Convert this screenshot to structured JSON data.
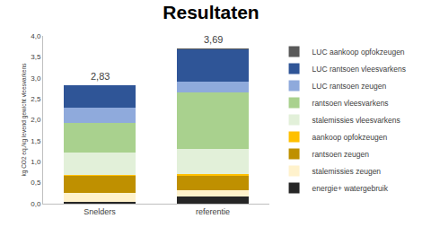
{
  "chart_data": {
    "type": "bar",
    "stacked": true,
    "title": "Resultaten",
    "y_label": "kg CO2 eq./kg levend gewicht vleesvarkens",
    "categories": [
      "Snelders",
      "referentie"
    ],
    "series": [
      {
        "name": "energie+ watergebruik",
        "color": "#262626",
        "values": [
          0.05,
          0.18
        ]
      },
      {
        "name": "stalemissies zeugen",
        "color": "#fff2cc",
        "values": [
          0.2,
          0.15
        ]
      },
      {
        "name": "rantsoen zeugen",
        "color": "#bf9000",
        "values": [
          0.42,
          0.34
        ]
      },
      {
        "name": "aankoop opfokzeugen",
        "color": "#ffc000",
        "values": [
          0.02,
          0.03
        ]
      },
      {
        "name": "stalemissies vleesvarkens",
        "color": "#e2f0d9",
        "values": [
          0.53,
          0.6
        ]
      },
      {
        "name": "rantsoen vleesvarkens",
        "color": "#a9d18e",
        "values": [
          0.7,
          1.35
        ]
      },
      {
        "name": "LUC rantsoen zeugen",
        "color": "#8faadc",
        "values": [
          0.36,
          0.25
        ]
      },
      {
        "name": "LUC rantsoen vleesvarkens",
        "color": "#2f5597",
        "values": [
          0.55,
          0.77
        ]
      },
      {
        "name": "LUC aankoop opfokzeugen",
        "color": "#595959",
        "values": [
          0,
          0.02
        ]
      }
    ],
    "totals": [
      2.83,
      3.69
    ],
    "total_labels": [
      "2,83",
      "3,69"
    ],
    "ylim": [
      0,
      4
    ],
    "yticks": [
      {
        "value": 0,
        "label": "0,0"
      },
      {
        "value": 0.5,
        "label": "0,5"
      },
      {
        "value": 1,
        "label": "1,0"
      },
      {
        "value": 1.5,
        "label": "1,5"
      },
      {
        "value": 2,
        "label": "2,0"
      },
      {
        "value": 2.5,
        "label": "2,5"
      },
      {
        "value": 3,
        "label": "3,0"
      },
      {
        "value": 3.5,
        "label": "3,5"
      },
      {
        "value": 4,
        "label": "4,0"
      }
    ],
    "grid": false,
    "legend": "right"
  }
}
